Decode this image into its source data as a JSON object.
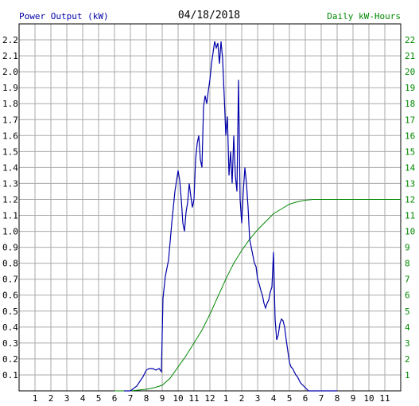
{
  "chart_data": {
    "type": "line",
    "title": "04/18/2018",
    "left_axis_label": "Power Output (kW)",
    "right_axis_label": "Daily kW-Hours",
    "left_ylim": [
      0,
      2.3
    ],
    "right_ylim": [
      0,
      23
    ],
    "left_ticks": [
      "0.1",
      "0.2",
      "0.3",
      "0.4",
      "0.5",
      "0.6",
      "0.7",
      "0.8",
      "0.9",
      "1.0",
      "1.1",
      "1.2",
      "1.3",
      "1.4",
      "1.5",
      "1.6",
      "1.7",
      "1.8",
      "1.9",
      "2.0",
      "2.1",
      "2.2"
    ],
    "right_ticks": [
      "1",
      "2",
      "3",
      "4",
      "5",
      "6",
      "7",
      "8",
      "9",
      "10",
      "11",
      "12",
      "13",
      "14",
      "15",
      "16",
      "17",
      "18",
      "19",
      "20",
      "21",
      "22"
    ],
    "x_ticks": [
      "1",
      "2",
      "3",
      "4",
      "5",
      "6",
      "7",
      "8",
      "9",
      "10",
      "11",
      "12",
      "1",
      "2",
      "3",
      "4",
      "5",
      "6",
      "7",
      "8",
      "9",
      "10",
      "11"
    ],
    "xlim": [
      0,
      24
    ],
    "grid": true,
    "colors": {
      "power": "#0000aa",
      "energy": "#008800",
      "left_label": "#0000aa",
      "right_label": "#008800",
      "grid": "#aaaaaa"
    },
    "series": [
      {
        "name": "Power Output (kW)",
        "axis": "left",
        "x": [
          6.6,
          7.0,
          7.4,
          7.8,
          8.0,
          8.2,
          8.4,
          8.6,
          8.8,
          8.95,
          9.05,
          9.2,
          9.4,
          9.6,
          9.8,
          10.0,
          10.1,
          10.2,
          10.3,
          10.4,
          10.5,
          10.6,
          10.7,
          10.8,
          10.9,
          11.0,
          11.1,
          11.2,
          11.3,
          11.4,
          11.5,
          11.6,
          11.7,
          11.8,
          11.9,
          12.0,
          12.1,
          12.2,
          12.3,
          12.4,
          12.5,
          12.6,
          12.7,
          12.8,
          12.9,
          13.0,
          13.1,
          13.2,
          13.3,
          13.4,
          13.5,
          13.6,
          13.7,
          13.8,
          13.9,
          14.0,
          14.1,
          14.2,
          14.3,
          14.4,
          14.5,
          14.6,
          14.7,
          14.8,
          14.9,
          15.0,
          15.1,
          15.2,
          15.3,
          15.4,
          15.5,
          15.6,
          15.7,
          15.8,
          15.9,
          16.0,
          16.1,
          16.2,
          16.3,
          16.4,
          16.5,
          16.6,
          16.7,
          16.8,
          16.9,
          17.0,
          17.1,
          17.2,
          17.3,
          17.4,
          17.5,
          17.6,
          17.7,
          17.8,
          17.9,
          18.0,
          18.1,
          18.2,
          18.3,
          18.4,
          18.6,
          18.8,
          19.0,
          19.2,
          19.4,
          19.6,
          19.8,
          20.0
        ],
        "y": [
          0.0,
          0.0,
          0.03,
          0.09,
          0.13,
          0.14,
          0.14,
          0.13,
          0.14,
          0.12,
          0.58,
          0.72,
          0.82,
          1.05,
          1.25,
          1.38,
          1.32,
          1.2,
          1.05,
          1.0,
          1.12,
          1.18,
          1.3,
          1.22,
          1.15,
          1.2,
          1.45,
          1.55,
          1.6,
          1.45,
          1.4,
          1.78,
          1.85,
          1.8,
          1.88,
          1.95,
          2.05,
          2.12,
          2.19,
          2.15,
          2.18,
          2.05,
          2.19,
          2.08,
          1.85,
          1.6,
          1.72,
          1.35,
          1.5,
          1.3,
          1.6,
          1.35,
          1.25,
          1.95,
          1.2,
          1.05,
          1.25,
          1.4,
          1.3,
          1.15,
          0.95,
          0.9,
          0.85,
          0.8,
          0.78,
          0.7,
          0.67,
          0.63,
          0.6,
          0.55,
          0.52,
          0.55,
          0.57,
          0.62,
          0.65,
          0.87,
          0.45,
          0.32,
          0.35,
          0.42,
          0.45,
          0.44,
          0.4,
          0.32,
          0.25,
          0.18,
          0.15,
          0.14,
          0.12,
          0.1,
          0.09,
          0.07,
          0.05,
          0.04,
          0.03,
          0.02,
          0.01,
          0.0,
          0.0,
          0.0,
          0.0,
          0.0,
          0.0,
          0.0,
          0.0,
          0.0,
          0.0,
          0.0
        ]
      },
      {
        "name": "Daily kW-Hours",
        "axis": "right",
        "x": [
          6.0,
          7.0,
          7.5,
          8.0,
          8.5,
          9.0,
          9.5,
          10.0,
          10.5,
          11.0,
          11.5,
          12.0,
          12.5,
          13.0,
          13.5,
          14.0,
          14.5,
          15.0,
          15.5,
          16.0,
          16.5,
          17.0,
          17.5,
          18.0,
          18.5,
          19.0,
          19.5,
          20.0,
          21.0,
          22.0,
          23.0,
          24.0
        ],
        "y": [
          0.0,
          0.0,
          0.05,
          0.1,
          0.2,
          0.35,
          0.8,
          1.5,
          2.2,
          3.0,
          3.8,
          4.8,
          5.9,
          7.0,
          8.0,
          8.8,
          9.5,
          10.1,
          10.6,
          11.1,
          11.4,
          11.7,
          11.85,
          11.95,
          12.0,
          12.0,
          12.0,
          12.0,
          12.0,
          12.0,
          12.0,
          12.0
        ]
      }
    ]
  }
}
